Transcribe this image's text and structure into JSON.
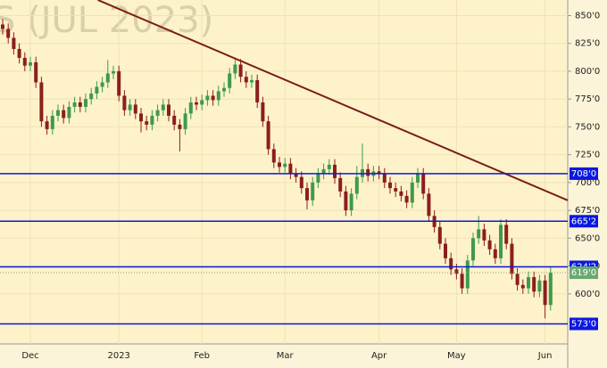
{
  "chart_data": {
    "type": "candlestick",
    "title": "S (JUL 2023)",
    "categories": [
      null,
      null,
      null,
      null,
      null,
      "Dec",
      null,
      null,
      null,
      null,
      null,
      null,
      null,
      null,
      null,
      null,
      null,
      null,
      null,
      null,
      null,
      "2023",
      null,
      null,
      null,
      null,
      null,
      null,
      null,
      null,
      null,
      null,
      null,
      null,
      null,
      null,
      "Feb",
      null,
      null,
      null,
      null,
      null,
      null,
      null,
      null,
      null,
      null,
      null,
      null,
      null,
      null,
      "Mar",
      null,
      null,
      null,
      null,
      null,
      null,
      null,
      null,
      null,
      null,
      null,
      null,
      null,
      null,
      null,
      null,
      "Apr",
      null,
      null,
      null,
      null,
      null,
      null,
      null,
      null,
      null,
      null,
      null,
      null,
      null,
      "May",
      null,
      null,
      null,
      null,
      null,
      null,
      null,
      null,
      null,
      null,
      null,
      null,
      null,
      null,
      null,
      "Jun",
      null
    ],
    "open": [
      842,
      838,
      830,
      820,
      812,
      805,
      808,
      790,
      755,
      748,
      760,
      765,
      758,
      768,
      772,
      768,
      775,
      780,
      786,
      790,
      798,
      800,
      778,
      765,
      770,
      762,
      755,
      752,
      760,
      765,
      770,
      760,
      752,
      748,
      762,
      772,
      770,
      774,
      778,
      774,
      782,
      785,
      798,
      806,
      795,
      790,
      792,
      772,
      755,
      730,
      718,
      714,
      717,
      708,
      705,
      695,
      684,
      700,
      708,
      712,
      716,
      704,
      692,
      675,
      690,
      705,
      712,
      706,
      710,
      708,
      700,
      695,
      692,
      688,
      682,
      700,
      708,
      690,
      670,
      660,
      645,
      632,
      622,
      618,
      605,
      630,
      650,
      658,
      648,
      640,
      632,
      662,
      645,
      618,
      608,
      605,
      615,
      602,
      612,
      590
    ],
    "high": [
      847,
      843,
      835,
      825,
      817,
      813,
      813,
      795,
      760,
      765,
      770,
      770,
      773,
      777,
      777,
      780,
      785,
      791,
      795,
      810,
      805,
      805,
      783,
      775,
      775,
      767,
      760,
      765,
      770,
      775,
      775,
      765,
      757,
      767,
      777,
      777,
      779,
      783,
      783,
      787,
      790,
      803,
      812,
      811,
      800,
      797,
      797,
      777,
      760,
      735,
      723,
      722,
      722,
      713,
      710,
      700,
      705,
      713,
      717,
      721,
      721,
      709,
      697,
      695,
      715,
      735,
      717,
      715,
      715,
      713,
      705,
      700,
      697,
      693,
      705,
      713,
      713,
      695,
      675,
      665,
      650,
      637,
      627,
      623,
      635,
      655,
      670,
      663,
      653,
      645,
      667,
      667,
      650,
      623,
      613,
      620,
      620,
      617,
      617,
      624
    ],
    "low": [
      833,
      825,
      815,
      807,
      800,
      800,
      785,
      750,
      743,
      743,
      755,
      753,
      753,
      763,
      763,
      763,
      770,
      775,
      781,
      785,
      793,
      773,
      760,
      760,
      757,
      745,
      747,
      747,
      755,
      760,
      755,
      747,
      728,
      743,
      757,
      765,
      765,
      769,
      769,
      769,
      777,
      780,
      793,
      790,
      785,
      785,
      767,
      750,
      725,
      713,
      709,
      709,
      703,
      700,
      690,
      676,
      679,
      695,
      703,
      707,
      699,
      687,
      670,
      670,
      685,
      700,
      701,
      701,
      703,
      695,
      690,
      687,
      683,
      677,
      677,
      695,
      685,
      665,
      655,
      640,
      627,
      617,
      613,
      600,
      600,
      625,
      645,
      643,
      635,
      627,
      627,
      640,
      613,
      603,
      600,
      600,
      597,
      597,
      578,
      585
    ],
    "close": [
      838,
      830,
      820,
      812,
      805,
      808,
      790,
      755,
      748,
      760,
      765,
      758,
      768,
      772,
      768,
      775,
      780,
      786,
      790,
      798,
      800,
      778,
      765,
      770,
      762,
      755,
      752,
      760,
      765,
      770,
      760,
      752,
      748,
      762,
      772,
      770,
      774,
      778,
      774,
      782,
      785,
      798,
      806,
      795,
      790,
      792,
      772,
      755,
      730,
      718,
      714,
      717,
      708,
      705,
      695,
      684,
      700,
      708,
      712,
      716,
      704,
      692,
      675,
      690,
      705,
      712,
      706,
      710,
      708,
      700,
      695,
      692,
      688,
      682,
      700,
      708,
      690,
      670,
      660,
      645,
      632,
      622,
      618,
      605,
      630,
      650,
      658,
      648,
      640,
      632,
      662,
      645,
      618,
      608,
      605,
      615,
      602,
      612,
      590,
      619
    ],
    "up_color": "#3f9a4c",
    "down_color": "#8b1e1e",
    "ylim": [
      555,
      864
    ],
    "yticks": [
      {
        "value": 600,
        "label": "600'0"
      },
      {
        "value": 625,
        "label": "625'0"
      },
      {
        "value": 650,
        "label": "650'0"
      },
      {
        "value": 675,
        "label": "675'0"
      },
      {
        "value": 700,
        "label": "700'0"
      },
      {
        "value": 725,
        "label": "725'0"
      },
      {
        "value": 750,
        "label": "750'0"
      },
      {
        "value": 775,
        "label": "775'0"
      },
      {
        "value": 800,
        "label": "800'0"
      },
      {
        "value": 825,
        "label": "825'0"
      },
      {
        "value": 850,
        "label": "850'0"
      }
    ],
    "grid": true,
    "levels": [
      {
        "value": 708,
        "label": "708'0"
      },
      {
        "value": 665.25,
        "label": "665'2"
      },
      {
        "value": 624.25,
        "label": "624'2"
      },
      {
        "value": 573,
        "label": "573'0"
      }
    ],
    "level_color": "#0a18e0",
    "last_price": {
      "value": 619,
      "label": "619'0",
      "color": "#6aa872"
    },
    "trendline": {
      "start": [
        17.2,
        864
      ],
      "end": [
        102.1,
        684
      ],
      "color": "#7a1a1a"
    }
  }
}
